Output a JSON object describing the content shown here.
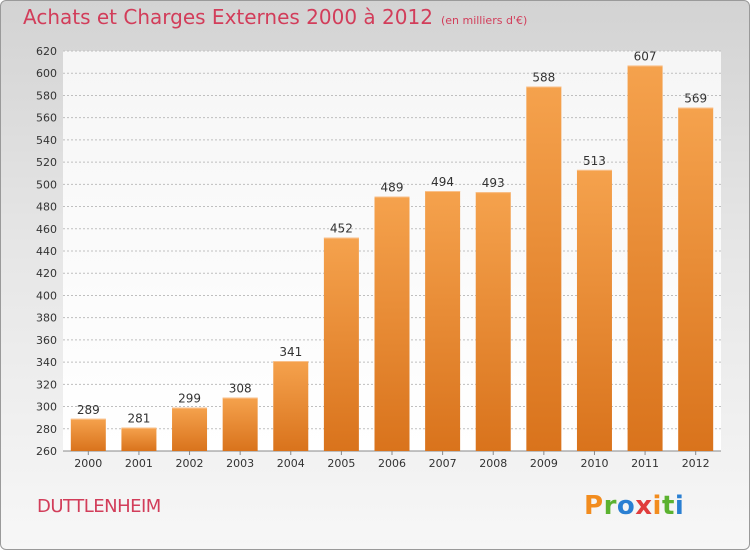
{
  "title": "Achats et Charges Externes 2000 à 2012",
  "unit": "(en milliers d'€)",
  "commune": "DUTTLENHEIM",
  "brand": "Proxiti",
  "brand_letter_colors": [
    "#f28c1e",
    "#5bb230",
    "#2a7fd2",
    "#e03c3c",
    "#f28c1e",
    "#5bb230",
    "#2a7fd2"
  ],
  "colors": {
    "title": "#d23d5a",
    "bar_top": "#f5a24d",
    "bar_bottom": "#d9731c",
    "grid": "#bfbfbf"
  },
  "chart_data": {
    "type": "bar",
    "categories": [
      "2000",
      "2001",
      "2002",
      "2003",
      "2004",
      "2005",
      "2006",
      "2007",
      "2008",
      "2009",
      "2010",
      "2011",
      "2012"
    ],
    "values": [
      289,
      281,
      299,
      308,
      341,
      452,
      489,
      494,
      493,
      588,
      513,
      607,
      569
    ],
    "ylim": [
      260,
      620
    ],
    "yticks": [
      260,
      280,
      300,
      320,
      340,
      360,
      380,
      400,
      420,
      440,
      460,
      480,
      500,
      520,
      540,
      560,
      580,
      600,
      620
    ],
    "grid": true,
    "xlabel": "",
    "ylabel": ""
  }
}
